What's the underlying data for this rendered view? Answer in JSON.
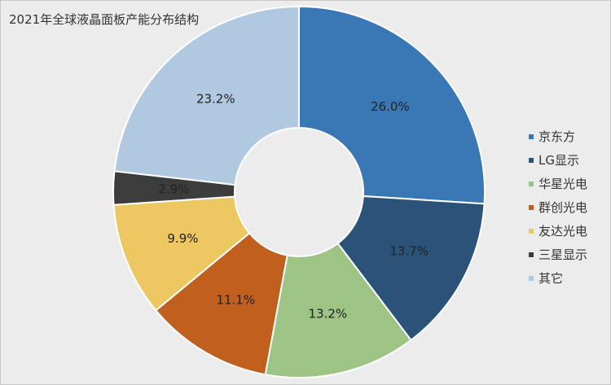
{
  "chart_data": {
    "type": "pie",
    "donut": true,
    "title": "2021年全球液晶面板产能分布结构",
    "categories": [
      "京东方",
      "LG显示",
      "华星光电",
      "群创光电",
      "友达光电",
      "三星显示",
      "其它"
    ],
    "values": [
      26.0,
      13.7,
      13.2,
      11.1,
      9.9,
      2.9,
      23.2
    ],
    "labels": [
      "26.0%",
      "13.7%",
      "13.2%",
      "11.1%",
      "9.9%",
      "2.9%",
      "23.2%"
    ],
    "colors": [
      "#3a78b5",
      "#2b5278",
      "#9dc485",
      "#c05f1e",
      "#ecc762",
      "#3c3c3c",
      "#b0c9e0"
    ],
    "legend_position": "right"
  }
}
